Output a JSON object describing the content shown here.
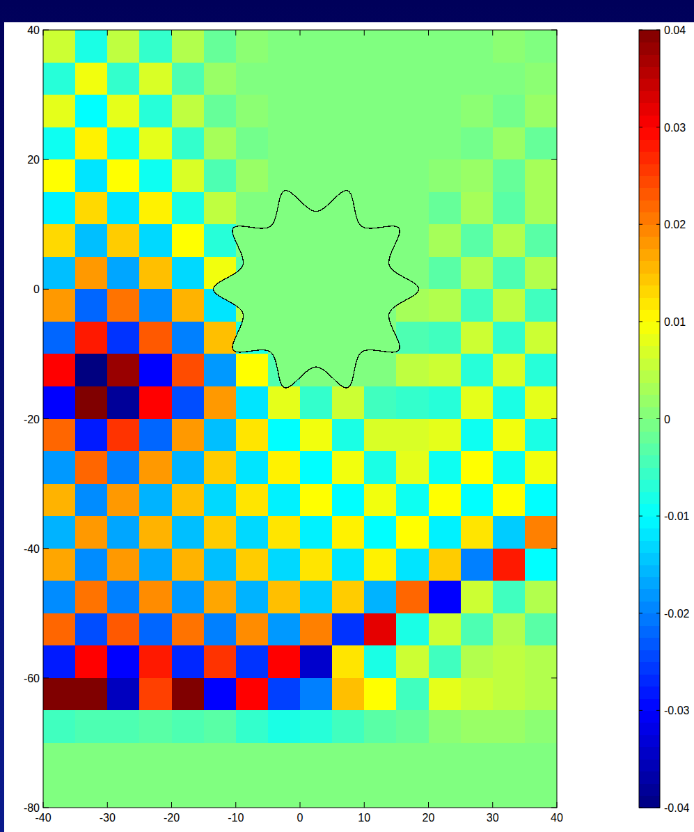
{
  "chart_data": {
    "type": "heatmap",
    "xlim": [
      -40,
      40
    ],
    "ylim": [
      -80,
      40
    ],
    "xticks": [
      -40,
      -30,
      -20,
      -10,
      0,
      10,
      20,
      30,
      40
    ],
    "yticks": [
      -80,
      -60,
      -40,
      -20,
      0,
      20,
      40
    ],
    "color_range": [
      -0.04,
      0.04
    ],
    "color_ticks": [
      -0.04,
      -0.03,
      -0.02,
      -0.01,
      0,
      0.01,
      0.02,
      0.03,
      0.04
    ],
    "cells": [
      [
        0.006,
        -0.008,
        0.005,
        -0.006,
        0.004,
        -0.002,
        0.001,
        0,
        0,
        0,
        0,
        0,
        0,
        0,
        0.001,
        0
      ],
      [
        -0.007,
        0.009,
        -0.006,
        0.007,
        -0.004,
        0.002,
        0,
        0,
        0,
        0,
        0,
        0,
        0,
        0,
        0,
        0.001
      ],
      [
        0.008,
        -0.01,
        0.008,
        -0.007,
        0.005,
        -0.002,
        0.001,
        0,
        0,
        0,
        0,
        0,
        0,
        0.001,
        -0.001,
        0.002
      ],
      [
        -0.009,
        0.011,
        -0.009,
        0.008,
        -0.006,
        0.003,
        -0.001,
        0,
        0,
        0,
        0,
        0,
        0,
        -0.001,
        0.002,
        -0.002
      ],
      [
        0.01,
        -0.012,
        0.01,
        -0.009,
        0.007,
        -0.004,
        0.002,
        0,
        0,
        0,
        0,
        0,
        0.001,
        0.002,
        -0.002,
        0.003
      ],
      [
        -0.011,
        0.013,
        -0.012,
        0.011,
        -0.008,
        0.005,
        0,
        0,
        0,
        0,
        0,
        0,
        -0.002,
        0.003,
        -0.003,
        0.003
      ],
      [
        0.013,
        -0.015,
        0.014,
        -0.013,
        0.01,
        -0.007,
        0,
        0,
        0,
        0,
        0,
        0,
        0.003,
        -0.003,
        0.004,
        -0.003
      ],
      [
        -0.015,
        0.018,
        -0.017,
        0.015,
        -0.013,
        0.009,
        -0.003,
        0,
        0,
        0,
        0,
        0,
        -0.003,
        0.004,
        -0.004,
        0.004
      ],
      [
        0.018,
        -0.022,
        0.021,
        -0.019,
        0.016,
        -0.012,
        0.004,
        0,
        0,
        0,
        0,
        0.003,
        0.004,
        -0.005,
        0.005,
        -0.005
      ],
      [
        -0.022,
        0.028,
        -0.026,
        0.023,
        -0.02,
        0.015,
        -0.008,
        0,
        0,
        0,
        0,
        -0.004,
        -0.005,
        0.006,
        -0.006,
        0.006
      ],
      [
        0.03,
        -0.04,
        0.038,
        -0.03,
        0.024,
        -0.018,
        0.01,
        -0.004,
        0,
        0,
        0,
        0.005,
        0.006,
        -0.007,
        0.007,
        -0.007
      ],
      [
        -0.03,
        0.04,
        -0.038,
        0.03,
        -0.024,
        0.018,
        -0.012,
        0.008,
        -0.006,
        0.006,
        -0.005,
        -0.006,
        -0.007,
        0.008,
        -0.008,
        0.008
      ],
      [
        0.022,
        -0.028,
        0.026,
        -0.022,
        0.018,
        -0.015,
        0.012,
        -0.01,
        0.009,
        -0.008,
        0.007,
        0.007,
        0.008,
        -0.009,
        0.009,
        -0.008
      ],
      [
        -0.018,
        0.022,
        -0.02,
        0.018,
        -0.016,
        0.014,
        -0.012,
        0.011,
        -0.01,
        0.009,
        -0.008,
        0.008,
        -0.009,
        0.01,
        -0.009,
        0.009
      ],
      [
        0.016,
        -0.019,
        0.018,
        -0.016,
        0.015,
        -0.013,
        0.012,
        -0.011,
        0.01,
        -0.01,
        0.009,
        -0.009,
        0.01,
        -0.01,
        0.01,
        -0.01
      ],
      [
        -0.016,
        0.018,
        -0.017,
        0.016,
        -0.015,
        0.014,
        -0.013,
        0.012,
        -0.011,
        0.011,
        -0.01,
        0.01,
        -0.011,
        0.012,
        -0.014,
        0.02
      ],
      [
        0.017,
        -0.019,
        0.018,
        -0.017,
        0.016,
        -0.015,
        0.014,
        -0.013,
        0.012,
        -0.012,
        0.011,
        -0.012,
        0.014,
        -0.02,
        0.028,
        -0.01
      ],
      [
        -0.019,
        0.021,
        -0.02,
        0.019,
        -0.018,
        0.017,
        -0.016,
        0.015,
        -0.014,
        0.014,
        -0.016,
        0.022,
        -0.03,
        0.006,
        -0.005,
        0.004
      ],
      [
        0.022,
        -0.024,
        0.023,
        -0.022,
        0.021,
        -0.02,
        0.019,
        -0.018,
        0.02,
        -0.026,
        0.032,
        -0.008,
        0.006,
        -0.004,
        0.004,
        -0.003
      ],
      [
        -0.028,
        0.03,
        -0.03,
        0.028,
        -0.027,
        0.026,
        -0.026,
        0.03,
        -0.034,
        0.012,
        -0.008,
        0.006,
        -0.005,
        0.004,
        0.005,
        0.004
      ],
      [
        0.04,
        0.04,
        -0.035,
        0.025,
        0.04,
        -0.03,
        0.03,
        -0.025,
        -0.02,
        0.015,
        0.01,
        -0.005,
        0.008,
        0.006,
        0.005,
        0.004
      ],
      [
        -0.005,
        -0.004,
        -0.004,
        -0.003,
        -0.004,
        -0.003,
        -0.006,
        -0.008,
        -0.007,
        -0.005,
        -0.003,
        -0.002,
        0.001,
        0.002,
        0.002,
        0.001
      ],
      [
        0,
        0,
        0,
        0,
        0,
        0,
        0,
        0,
        0,
        0,
        0,
        0,
        0,
        0,
        0,
        0
      ],
      [
        0,
        0,
        0,
        0,
        0,
        0,
        0,
        0,
        0,
        0,
        0,
        0,
        0,
        0,
        0,
        0
      ]
    ],
    "obstacle": {
      "x": [
        18.5,
        13.9,
        15.4,
        9.6,
        7.4,
        2.5,
        -2.4,
        -4.6,
        -10.4,
        -8.9,
        -13.5,
        -8.9,
        -10.4,
        -4.6,
        -2.4,
        2.5,
        7.4,
        9.6,
        15.4,
        13.9
      ],
      "y": [
        0,
        3.7,
        9.4,
        9.7,
        15.2,
        12,
        15.2,
        9.7,
        9.4,
        3.7,
        0,
        -3.7,
        -9.4,
        -9.7,
        -15.2,
        -12,
        -15.2,
        -9.7,
        -9.4,
        -3.7
      ]
    }
  }
}
